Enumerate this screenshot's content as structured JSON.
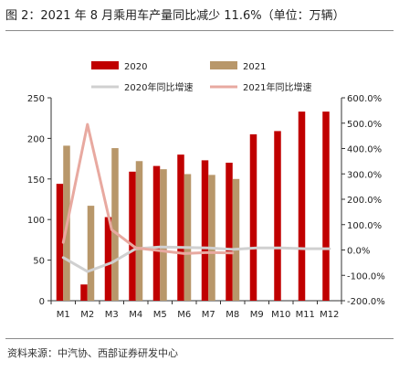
{
  "title": "图 2：2021 年 8 月乘用车产量同比减少 11.6%（单位：万辆）",
  "source": "资料来源：中汽协、西部证券研发中心",
  "chart_data": {
    "type": "bar",
    "categories": [
      "M1",
      "M2",
      "M3",
      "M4",
      "M5",
      "M6",
      "M7",
      "M8",
      "M9",
      "M10",
      "M11",
      "M12"
    ],
    "series": [
      {
        "name": "2020",
        "type": "bar",
        "axis": "left",
        "color": "#c00000",
        "values": [
          144,
          20,
          103,
          159,
          166,
          180,
          173,
          170,
          205,
          209,
          233,
          233
        ]
      },
      {
        "name": "2021",
        "type": "bar",
        "axis": "left",
        "color": "#b8976a",
        "values": [
          191,
          117,
          188,
          172,
          162,
          156,
          155,
          150,
          null,
          null,
          null,
          null
        ]
      },
      {
        "name": "2020年同比增速",
        "type": "line",
        "axis": "right",
        "color": "#d0d0d0",
        "values": [
          -30,
          -85,
          -50,
          5,
          12,
          10,
          8,
          2,
          8,
          8,
          5,
          5
        ]
      },
      {
        "name": "2021年同比增速",
        "type": "line",
        "axis": "right",
        "color": "#e8a9a0",
        "values": [
          30,
          495,
          80,
          8,
          -3,
          -14,
          -10,
          -12,
          null,
          null,
          null,
          null
        ]
      }
    ],
    "ylim_left": [
      0,
      250
    ],
    "yticks_left": [
      "0",
      "50",
      "100",
      "150",
      "200",
      "250"
    ],
    "ylim_right": [
      -200,
      600
    ],
    "yticks_right": [
      "-200.0%",
      "-100.0%",
      "0.0%",
      "100.0%",
      "200.0%",
      "300.0%",
      "400.0%",
      "500.0%",
      "600.0%"
    ],
    "legend_position": "top"
  }
}
